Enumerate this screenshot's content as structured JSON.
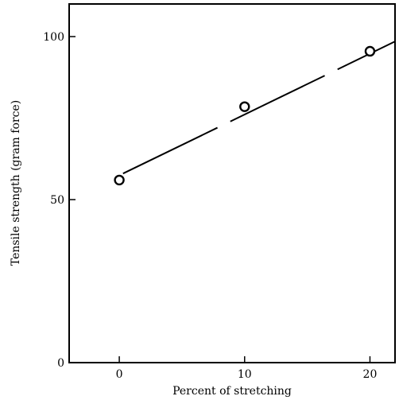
{
  "chart_data": {
    "type": "line",
    "title": "",
    "xlabel": "Percent of stretching",
    "ylabel": "Tensile strength (gram force)",
    "xlim": [
      -4,
      22
    ],
    "ylim": [
      0,
      110
    ],
    "x_ticks": [
      0,
      10,
      20
    ],
    "y_ticks": [
      0,
      50,
      100
    ],
    "x_tick_labels": [
      "0",
      "10",
      "20"
    ],
    "y_tick_labels": [
      "0",
      "50",
      "100"
    ],
    "grid": false,
    "series": [
      {
        "name": "",
        "marker": "open-circle",
        "x": [
          0,
          10,
          20
        ],
        "y": [
          56,
          78.5,
          95.5
        ]
      }
    ],
    "trend_line": {
      "style": "dashed",
      "x": [
        0.3,
        22
      ],
      "y": [
        58,
        98.5
      ]
    }
  }
}
